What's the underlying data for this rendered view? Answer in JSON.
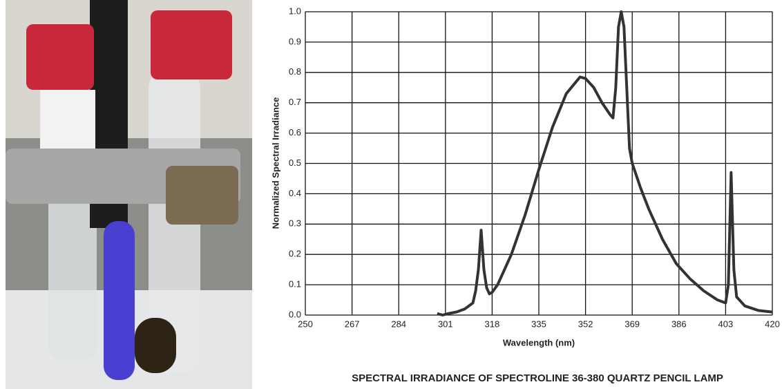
{
  "chart_data": {
    "type": "line",
    "x": [
      298,
      300,
      302,
      305,
      308,
      311,
      312,
      313,
      314,
      315,
      316,
      317,
      318,
      320,
      325,
      330,
      335,
      340,
      345,
      350,
      352,
      355,
      358,
      361,
      362,
      363,
      364,
      365,
      366,
      367,
      368,
      369,
      372,
      375,
      380,
      385,
      390,
      395,
      400,
      403,
      404,
      405,
      406,
      407,
      410,
      415,
      420
    ],
    "values": [
      0.005,
      0,
      0.005,
      0.01,
      0.02,
      0.04,
      0.08,
      0.15,
      0.28,
      0.15,
      0.09,
      0.07,
      0.075,
      0.1,
      0.2,
      0.33,
      0.48,
      0.62,
      0.73,
      0.785,
      0.78,
      0.75,
      0.7,
      0.66,
      0.65,
      0.75,
      0.95,
      1.0,
      0.95,
      0.75,
      0.55,
      0.5,
      0.42,
      0.35,
      0.25,
      0.17,
      0.12,
      0.08,
      0.05,
      0.04,
      0.1,
      0.47,
      0.15,
      0.06,
      0.03,
      0.015,
      0.01
    ],
    "color": "#333333",
    "xlim": [
      250,
      420
    ],
    "xticks": [
      250,
      267,
      284,
      301,
      318,
      335,
      352,
      369,
      386,
      403,
      420
    ],
    "ylim": [
      0,
      1
    ],
    "yticks": [
      {
        "value": 0,
        "label": "0.0"
      },
      0.1,
      0.2,
      0.3,
      0.4,
      0.5,
      0.6,
      0.7,
      0.8,
      0.9,
      {
        "value": 1,
        "label": "1.0"
      }
    ],
    "grid": true,
    "xlabel": "Wavelength (nm)",
    "ylabel": "Normalized Spectral Irradiance",
    "caption": "SPECTRAL IRRADIANCE OF SPECTROLINE 36-380 QUARTZ PENCIL LAMP"
  }
}
